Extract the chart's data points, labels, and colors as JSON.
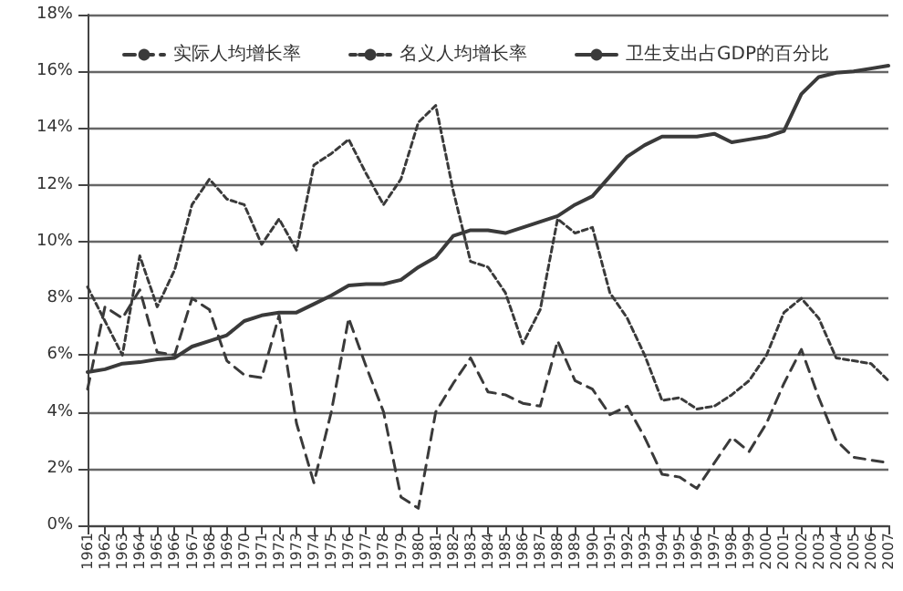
{
  "chart_data": {
    "type": "line",
    "categories": [
      "1961",
      "1962",
      "1963",
      "1964",
      "1965",
      "1966",
      "1967",
      "1968",
      "1969",
      "1970",
      "1971",
      "1972",
      "1973",
      "1974",
      "1975",
      "1976",
      "1977",
      "1978",
      "1979",
      "1980",
      "1981",
      "1982",
      "1983",
      "1984",
      "1985",
      "1986",
      "1987",
      "1988",
      "1989",
      "1990",
      "1991",
      "1992",
      "1993",
      "1994",
      "1995",
      "1996",
      "1997",
      "1998",
      "1999",
      "2000",
      "2001",
      "2002",
      "2003",
      "2004",
      "2005",
      "2006",
      "2007"
    ],
    "series": [
      {
        "name": "实际人均增长率",
        "color": "#3a3a3a",
        "line_style": "dashed",
        "values": [
          4.8,
          7.7,
          7.3,
          8.3,
          6.1,
          6.0,
          8.0,
          7.6,
          5.8,
          5.3,
          5.2,
          7.4,
          3.6,
          1.5,
          4.0,
          7.3,
          5.6,
          4.0,
          1.0,
          0.6,
          4.0,
          5.0,
          5.9,
          4.7,
          4.6,
          4.3,
          4.2,
          6.5,
          5.1,
          4.8,
          3.9,
          4.2,
          3.1,
          1.8,
          1.7,
          1.3,
          2.2,
          3.1,
          2.6,
          3.6,
          5.0,
          6.2,
          4.5,
          3.0,
          2.4,
          2.3,
          2.2
        ]
      },
      {
        "name": "名义人均增长率",
        "color": "#3a3a3a",
        "line_style": "dotted",
        "values": [
          8.4,
          7.2,
          6.0,
          9.5,
          7.7,
          9.0,
          11.3,
          12.2,
          11.5,
          11.3,
          9.9,
          10.8,
          9.7,
          12.7,
          13.1,
          13.6,
          12.4,
          11.3,
          12.2,
          14.2,
          14.8,
          11.8,
          9.3,
          9.1,
          8.2,
          6.4,
          7.6,
          10.8,
          10.3,
          10.5,
          8.2,
          7.3,
          6.0,
          4.4,
          4.5,
          4.1,
          4.2,
          4.6,
          5.1,
          6.0,
          7.5,
          8.0,
          7.3,
          5.9,
          5.8,
          5.7,
          5.1
        ]
      },
      {
        "name": "卫生支出占GDP的百分比",
        "color": "#3a3a3a",
        "line_style": "solid",
        "values": [
          5.4,
          5.5,
          5.7,
          5.75,
          5.85,
          5.9,
          6.3,
          6.5,
          6.7,
          7.2,
          7.4,
          7.5,
          7.5,
          7.8,
          8.1,
          8.45,
          8.5,
          8.5,
          8.65,
          9.1,
          9.45,
          10.2,
          10.4,
          10.4,
          10.3,
          10.5,
          10.7,
          10.9,
          11.3,
          11.6,
          12.3,
          13.0,
          13.4,
          13.7,
          13.7,
          13.7,
          13.8,
          13.5,
          13.6,
          13.7,
          13.9,
          15.2,
          15.8,
          15.95,
          16.0,
          16.1,
          16.2
        ]
      }
    ],
    "ylim": [
      0,
      18
    ],
    "yticks": [
      {
        "value": 0,
        "label": "0%"
      },
      {
        "value": 2,
        "label": "2%"
      },
      {
        "value": 4,
        "label": "4%"
      },
      {
        "value": 6,
        "label": "6%"
      },
      {
        "value": 8,
        "label": "8%"
      },
      {
        "value": 10,
        "label": "10%"
      },
      {
        "value": 12,
        "label": "12%"
      },
      {
        "value": 14,
        "label": "14%"
      },
      {
        "value": 16,
        "label": "16%"
      },
      {
        "value": 18,
        "label": "18%"
      }
    ],
    "grid": "y",
    "legend": "top",
    "marker": "none"
  }
}
